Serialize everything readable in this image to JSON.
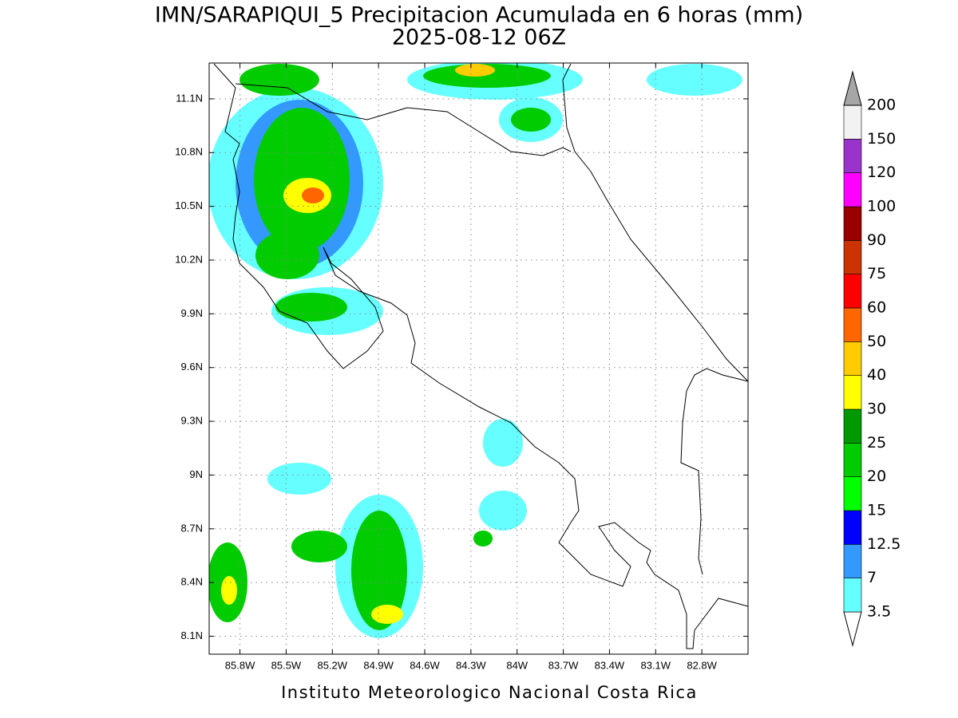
{
  "title": "IMN/SARAPIQUI_5 Precipitacion Acumulada en 6 horas (mm)",
  "subtitle": "2025-08-12 06Z",
  "map": {
    "xlim": [
      -86.0,
      -82.5
    ],
    "ylim": [
      8.0,
      11.3
    ],
    "lat_ticks": [
      {
        "value": 8.1,
        "label": "8.1N"
      },
      {
        "value": 8.4,
        "label": "8.4N"
      },
      {
        "value": 8.7,
        "label": "8.7N"
      },
      {
        "value": 9.0,
        "label": "9N"
      },
      {
        "value": 9.3,
        "label": "9.3N"
      },
      {
        "value": 9.6,
        "label": "9.6N"
      },
      {
        "value": 9.9,
        "label": "9.9N"
      },
      {
        "value": 10.2,
        "label": "10.2N"
      },
      {
        "value": 10.5,
        "label": "10.5N"
      },
      {
        "value": 10.8,
        "label": "10.8N"
      },
      {
        "value": 11.1,
        "label": "11.1N"
      }
    ],
    "lon_ticks": [
      {
        "value": -85.8,
        "label": "85.8W"
      },
      {
        "value": -85.5,
        "label": "85.5W"
      },
      {
        "value": -85.2,
        "label": "85.2W"
      },
      {
        "value": -84.9,
        "label": "84.9W"
      },
      {
        "value": -84.6,
        "label": "84.6W"
      },
      {
        "value": -84.3,
        "label": "84.3W"
      },
      {
        "value": -84.0,
        "label": "84W"
      },
      {
        "value": -83.7,
        "label": "83.7W"
      },
      {
        "value": -83.4,
        "label": "83.4W"
      },
      {
        "value": -83.1,
        "label": "83.1W"
      },
      {
        "value": -82.8,
        "label": "82.8W"
      }
    ],
    "grid": true
  },
  "colorbar": {
    "levels": [
      3.5,
      7,
      12.5,
      15,
      20,
      25,
      30,
      40,
      50,
      60,
      75,
      90,
      100,
      120,
      150,
      200
    ],
    "colors": [
      "#ffffff",
      "#66ffff",
      "#3399ff",
      "#0000ff",
      "#00ff00",
      "#00cc00",
      "#009900",
      "#ffff00",
      "#ffcc00",
      "#ff6600",
      "#ff0000",
      "#cc3300",
      "#990000",
      "#ff00ff",
      "#9933cc",
      "#f2f2f2",
      "#a6a6a6"
    ]
  },
  "footer": "Instituto Meteorologico Nacional Costa Rica"
}
